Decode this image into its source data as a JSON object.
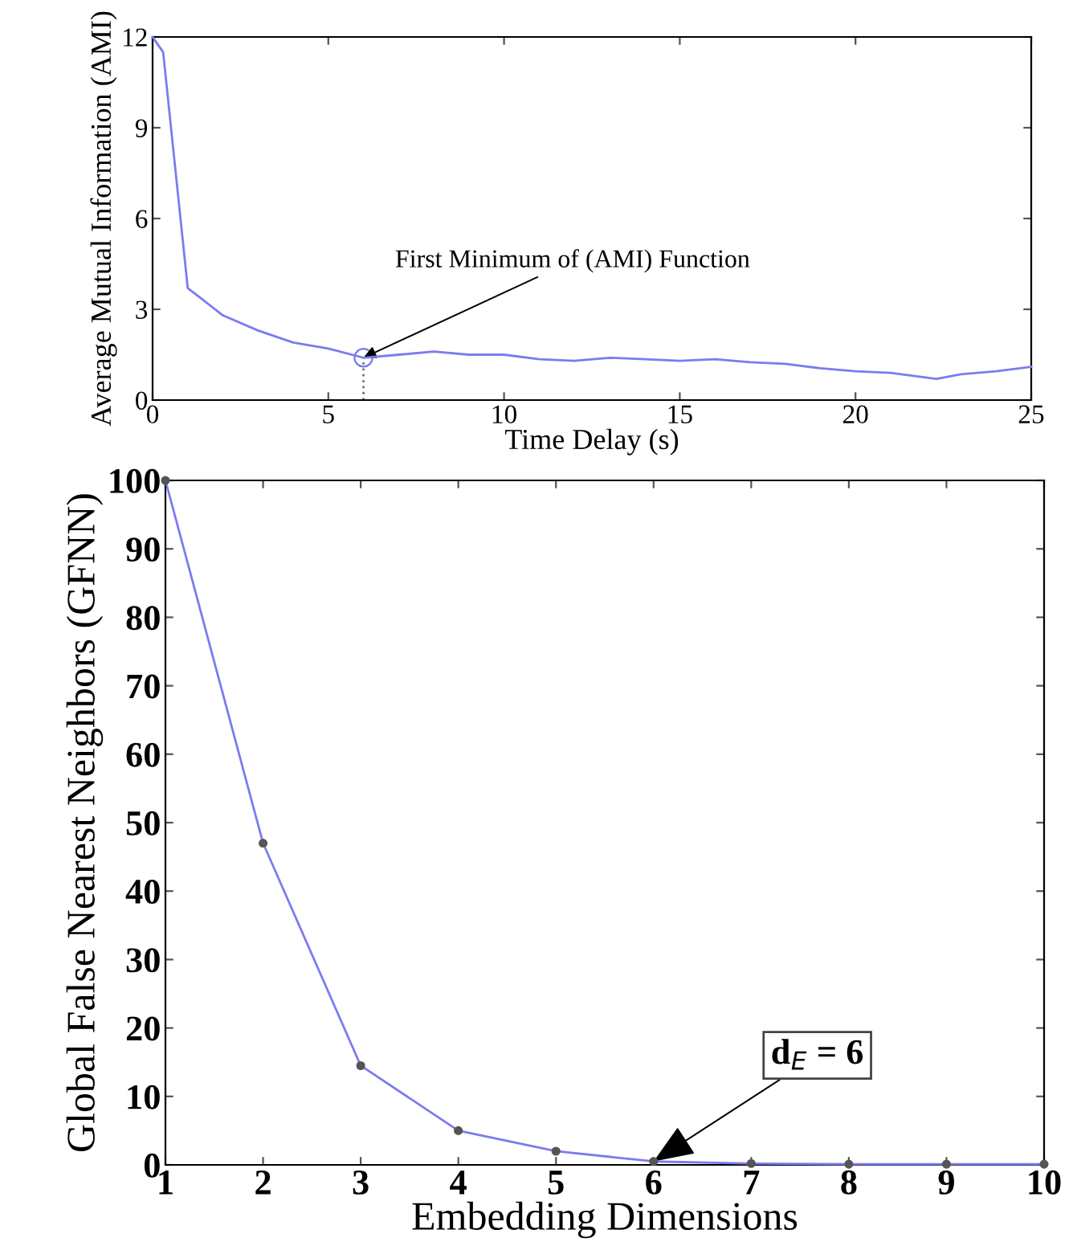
{
  "chart_data": [
    {
      "type": "line",
      "xlabel": "Time Delay (s)",
      "ylabel": "Average Mutual Information (AMI)",
      "x": [
        0,
        0.3,
        1,
        2,
        3,
        4,
        5,
        6,
        7,
        8,
        9,
        10,
        11,
        12,
        13,
        14,
        15,
        16,
        17,
        18,
        19,
        20,
        21,
        22.3,
        23,
        24,
        25
      ],
      "series": [
        {
          "color": "#7b7bf0",
          "values": [
            12,
            11.5,
            3.7,
            2.8,
            2.3,
            1.9,
            1.7,
            1.4,
            1.5,
            1.6,
            1.5,
            1.5,
            1.35,
            1.3,
            1.4,
            1.35,
            1.3,
            1.35,
            1.25,
            1.2,
            1.05,
            0.95,
            0.9,
            0.7,
            0.85,
            0.95,
            1.1
          ]
        }
      ],
      "xlim": [
        0,
        25
      ],
      "xticks": [
        0,
        5,
        10,
        15,
        20,
        25
      ],
      "ylim": [
        0,
        12
      ],
      "yticks": [
        0,
        3,
        6,
        9,
        12
      ],
      "grid": false,
      "marker": "none",
      "line_style": "solid",
      "annotations": [
        {
          "text": "First Minimum of (AMI) Function",
          "x": 6,
          "y": 1.4
        }
      ]
    },
    {
      "type": "line",
      "xlabel": "Embedding Dimensions",
      "ylabel": "Global False Nearest Neighbors (GFNN)",
      "x": [
        1,
        2,
        3,
        4,
        5,
        6,
        7,
        8,
        9,
        10
      ],
      "series": [
        {
          "color": "#7b7bf0",
          "values": [
            100,
            47,
            14.5,
            5,
            2,
            0.5,
            0.2,
            0.1,
            0.1,
            0.1
          ]
        }
      ],
      "xlim": [
        1,
        10
      ],
      "xticks": [
        1,
        2,
        3,
        4,
        5,
        6,
        7,
        8,
        9,
        10
      ],
      "ylim": [
        0,
        100
      ],
      "yticks": [
        0,
        10,
        20,
        30,
        40,
        50,
        60,
        70,
        80,
        90,
        100
      ],
      "grid": false,
      "marker": "circle",
      "line_style": "solid",
      "annotations": [
        {
          "text": "d$_{E}$ = 6",
          "x": 6,
          "y": 0.5
        }
      ]
    }
  ]
}
